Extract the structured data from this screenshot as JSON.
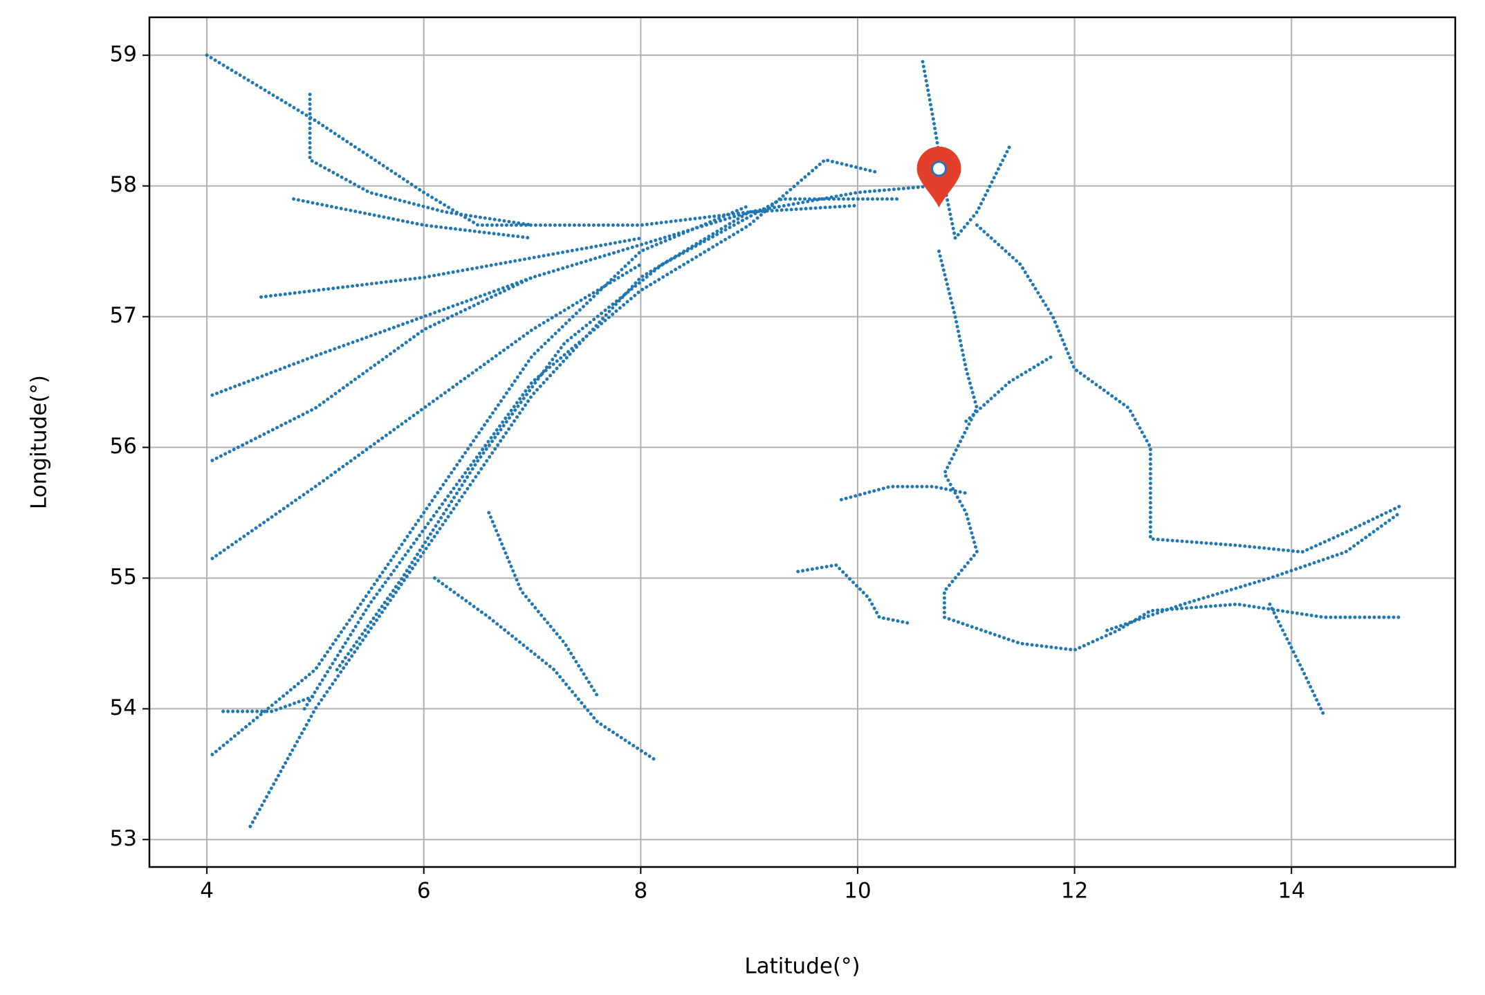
{
  "chart_data": {
    "type": "line",
    "color": "#1f77b4",
    "xlabel": "Latitude(°)",
    "ylabel": "Longitude(°)",
    "xlim": [
      3.47,
      15.51
    ],
    "ylim": [
      52.79,
      59.29
    ],
    "xticks": [
      4,
      6,
      8,
      10,
      12,
      14
    ],
    "yticks": [
      53,
      54,
      55,
      56,
      57,
      58,
      59
    ],
    "grid": true,
    "tracks": [
      {
        "x": [
          4.4,
          5,
          6,
          7,
          8,
          9,
          10,
          10.7
        ],
        "values": [
          53.1,
          54,
          55.2,
          56.4,
          57.3,
          57.8,
          57.95,
          58.0
        ]
      },
      {
        "x": [
          4.05,
          5,
          6,
          7,
          8,
          9
        ],
        "values": [
          53.65,
          54.3,
          55.5,
          56.7,
          57.5,
          57.85
        ]
      },
      {
        "x": [
          4.05,
          5,
          6,
          7,
          8
        ],
        "values": [
          55.15,
          55.7,
          56.3,
          56.9,
          57.4
        ]
      },
      {
        "x": [
          4.05,
          5,
          6,
          7,
          8,
          9
        ],
        "values": [
          56.4,
          56.7,
          57.0,
          57.3,
          57.55,
          57.8
        ]
      },
      {
        "x": [
          4,
          5,
          6,
          6.5,
          8,
          9,
          10
        ],
        "values": [
          59,
          58.5,
          57.95,
          57.7,
          57.7,
          57.8,
          57.85
        ]
      },
      {
        "x": [
          4.05,
          5,
          6,
          7
        ],
        "values": [
          55.9,
          56.3,
          56.9,
          57.3
        ]
      },
      {
        "x": [
          4.5,
          6,
          8
        ],
        "values": [
          57.15,
          57.3,
          57.6
        ]
      },
      {
        "x": [
          4.9,
          5.5,
          6.2,
          7.0,
          8.0,
          9.0,
          9.7,
          10.2
        ],
        "values": [
          54.0,
          54.8,
          55.6,
          56.5,
          57.2,
          57.7,
          58.2,
          58.1
        ]
      },
      {
        "x": [
          5.2,
          5.8,
          6.5,
          7.3,
          8.2,
          9.3,
          10.4
        ],
        "values": [
          54.3,
          55.0,
          55.9,
          56.8,
          57.4,
          57.9,
          57.9
        ]
      },
      {
        "x": [
          6.1,
          6.6,
          7.2,
          7.6,
          8.15
        ],
        "values": [
          55.0,
          54.7,
          54.3,
          53.9,
          53.6
        ]
      },
      {
        "x": [
          6.6,
          6.9,
          7.3,
          7.6
        ],
        "values": [
          55.5,
          54.9,
          54.5,
          54.1
        ]
      },
      {
        "x": [
          10.6,
          10.7,
          10.8,
          10.9,
          11.1,
          11.4
        ],
        "values": [
          58.95,
          58.5,
          58.0,
          57.6,
          57.8,
          58.3
        ]
      },
      {
        "x": [
          10.75,
          10.9,
          11.0,
          11.1,
          10.8,
          11.0,
          11.1,
          10.8,
          10.8,
          11.5,
          12.0,
          12.4,
          12.7,
          13.5,
          14.3,
          15
        ],
        "values": [
          57.5,
          57.0,
          56.6,
          56.3,
          55.8,
          55.5,
          55.2,
          54.9,
          54.7,
          54.5,
          54.45,
          54.6,
          54.75,
          54.8,
          54.7,
          54.7
        ]
      },
      {
        "x": [
          11.1,
          11.5,
          11.8,
          12.0,
          12.5,
          12.7,
          12.7,
          12.7,
          13.5,
          14.1,
          14.5,
          15
        ],
        "values": [
          57.7,
          57.4,
          57.0,
          56.6,
          56.3,
          56.0,
          55.5,
          55.3,
          55.25,
          55.2,
          55.35,
          55.55
        ]
      },
      {
        "x": [
          12.3,
          13,
          13.8,
          14.5,
          15
        ],
        "values": [
          54.6,
          54.8,
          55.0,
          55.2,
          55.5
        ]
      },
      {
        "x": [
          13.8,
          14.1,
          14.3
        ],
        "values": [
          54.8,
          54.3,
          53.95
        ]
      },
      {
        "x": [
          9.45,
          9.8,
          10.1,
          10.2,
          10.5
        ],
        "values": [
          55.05,
          55.1,
          54.85,
          54.7,
          54.65
        ]
      },
      {
        "x": [
          9.85,
          10.3,
          10.7,
          11.0
        ],
        "values": [
          55.6,
          55.7,
          55.7,
          55.65
        ]
      },
      {
        "x": [
          11.0,
          11.4,
          11.8
        ],
        "values": [
          56.2,
          56.5,
          56.7
        ]
      },
      {
        "x": [
          4.95,
          4.95,
          5.5,
          6.2,
          7
        ],
        "values": [
          58.7,
          58.2,
          57.95,
          57.8,
          57.7
        ]
      },
      {
        "x": [
          4.8,
          6,
          7
        ],
        "values": [
          57.9,
          57.7,
          57.6
        ]
      },
      {
        "x": [
          4.15,
          4.6,
          5
        ],
        "values": [
          53.98,
          53.98,
          54.1
        ]
      }
    ],
    "marker": {
      "x": 10.75,
      "y": 58.1,
      "color": "#e2402a"
    }
  }
}
